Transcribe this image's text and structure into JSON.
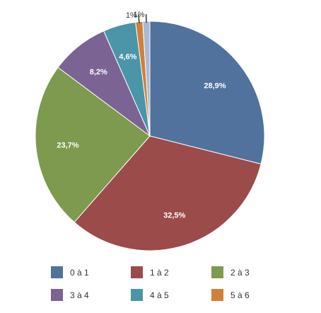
{
  "chart_data": {
    "type": "pie",
    "slices": [
      {
        "label": "0 à 1",
        "value": 28.9,
        "data_label": "28,9%",
        "color": "#50729d"
      },
      {
        "label": "1 à 2",
        "value": 32.5,
        "data_label": "32,5%",
        "color": "#9b4b4a"
      },
      {
        "label": "2 à 3",
        "value": 23.7,
        "data_label": "23,7%",
        "color": "#7d9a4f"
      },
      {
        "label": "3 à 4",
        "value": 8.2,
        "data_label": "8,2%",
        "color": "#7b6394"
      },
      {
        "label": "4 à 5",
        "value": 4.6,
        "data_label": "4,6%",
        "color": "#4a95a8"
      },
      {
        "label": "5 à 6",
        "value": 1.0,
        "data_label": "1%",
        "color": "#d0803a"
      },
      {
        "label": "",
        "value": 1.0,
        "data_label": "1%",
        "color": "#a9b9d6"
      }
    ],
    "legend_position": "bottom",
    "label_color_inside": "#ffffff",
    "label_color_outside": "#333333"
  }
}
